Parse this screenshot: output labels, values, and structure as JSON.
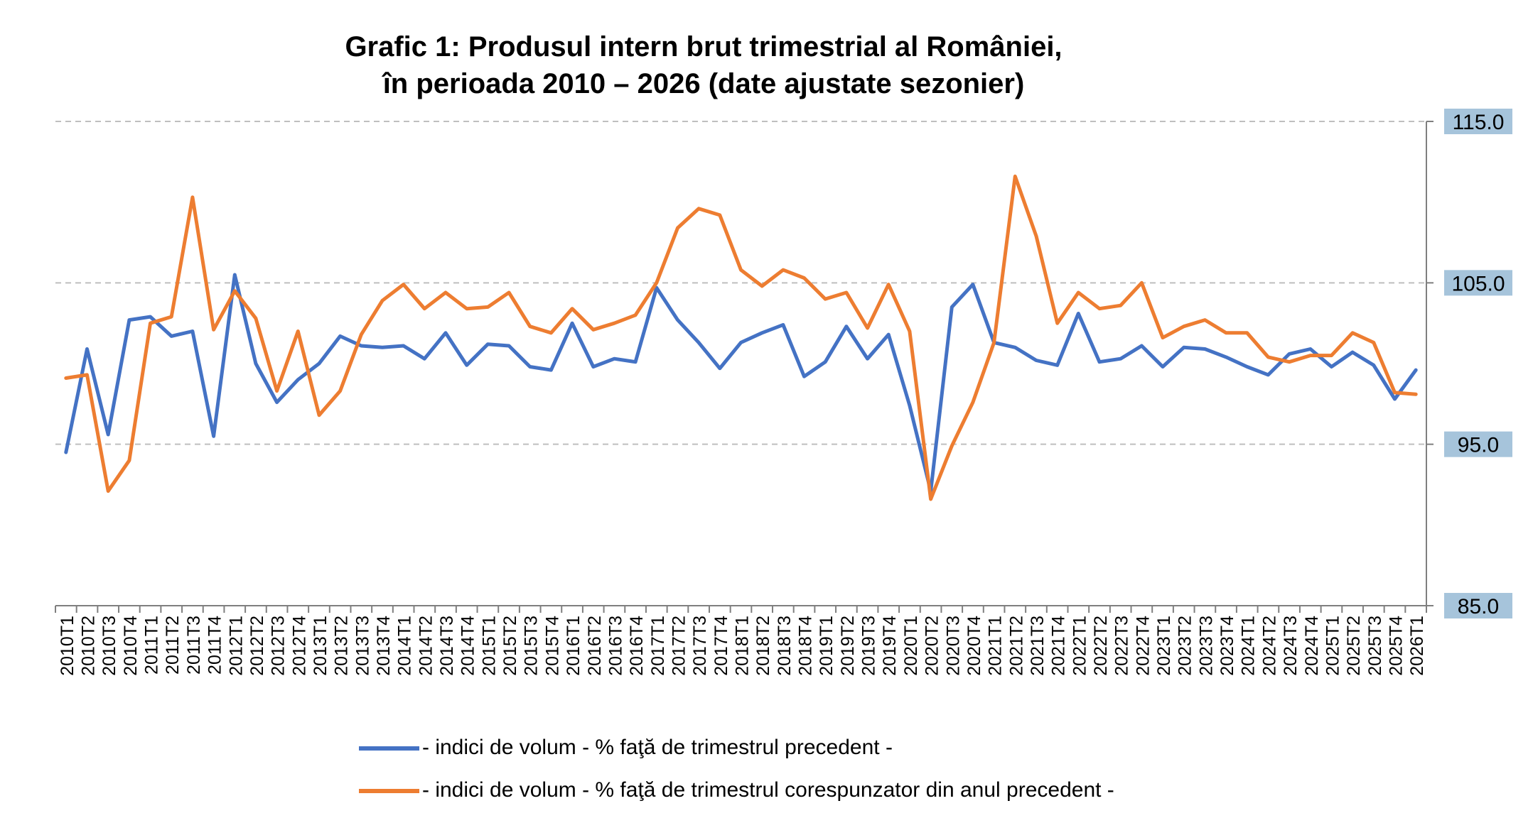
{
  "chart_data": {
    "type": "line",
    "title_line1": "Grafic 1: Produsul intern brut trimestrial al României,",
    "title_line2": "în perioada 2010 – 2026 (date ajustate sezonier)",
    "ylim": [
      85,
      115
    ],
    "y_ticks": [
      "115.0",
      "105.0",
      "95.0",
      "85.0"
    ],
    "y_tick_values": [
      115,
      105,
      95,
      85
    ],
    "y_axis_position": "right",
    "grid": "horizontal dashed",
    "legend_position": "bottom",
    "x": [
      "2010T1",
      "2010T2",
      "2010T3",
      "2010T4",
      "2011T1",
      "2011T2",
      "2011T3",
      "2011T4",
      "2012T1",
      "2012T2",
      "2012T3",
      "2012T4",
      "2013T1",
      "2013T2",
      "2013T3",
      "2013T4",
      "2014T1",
      "2014T2",
      "2014T3",
      "2014T4",
      "2015T1",
      "2015T2",
      "2015T3",
      "2015T4",
      "2016T1",
      "2016T2",
      "2016T3",
      "2016T4",
      "2017T1",
      "2017T2",
      "2017T3",
      "2017T4",
      "2018T1",
      "2018T2",
      "2018T3",
      "2018T4",
      "2019T1",
      "2019T2",
      "2019T3",
      "2019T4",
      "2020T1",
      "2020T2",
      "2020T3",
      "2020T4",
      "2021T1",
      "2021T2",
      "2021T3",
      "2021T4",
      "2022T1",
      "2022T2",
      "2022T3",
      "2022T4",
      "2023T1",
      "2023T2",
      "2023T3",
      "2023T4",
      "2024T1",
      "2024T2",
      "2024T3",
      "2024T4",
      "2025T1",
      "2025T2",
      "2025T3",
      "2025T4",
      "2026T1"
    ],
    "series": [
      {
        "name": "- indici de volum - % faţă de trimestrul precedent -",
        "color": "#4472C4",
        "values": [
          94.5,
          100.9,
          95.6,
          102.7,
          102.9,
          101.7,
          102.0,
          95.5,
          105.5,
          100.0,
          97.6,
          99.0,
          100.0,
          101.7,
          101.1,
          101.0,
          101.1,
          100.3,
          101.9,
          99.9,
          101.2,
          101.1,
          99.8,
          99.6,
          102.5,
          99.8,
          100.3,
          100.1,
          104.7,
          102.7,
          101.3,
          99.7,
          101.3,
          101.9,
          102.4,
          99.2,
          100.1,
          102.3,
          100.3,
          101.8,
          97.4,
          92.1,
          103.5,
          104.9,
          101.3,
          101.0,
          100.2,
          99.9,
          103.1,
          100.1,
          100.3,
          101.1,
          99.8,
          101.0,
          100.9,
          100.4,
          99.8,
          99.3,
          100.6,
          100.9,
          99.8,
          100.7,
          99.9,
          97.8,
          99.6
        ]
      },
      {
        "name": "- indici de volum - % faţă de trimestrul corespunzator din anul precedent -",
        "color": "#ED7D31",
        "values": [
          99.1,
          99.3,
          92.1,
          94.0,
          102.5,
          102.9,
          110.3,
          102.1,
          104.5,
          102.8,
          98.3,
          102.0,
          96.8,
          98.3,
          101.8,
          103.9,
          104.9,
          103.4,
          104.4,
          103.4,
          103.5,
          104.4,
          102.3,
          101.9,
          103.4,
          102.1,
          102.5,
          103.0,
          105.0,
          108.4,
          109.6,
          109.2,
          105.8,
          104.8,
          105.8,
          105.3,
          104.0,
          104.4,
          102.2,
          104.9,
          102.0,
          91.6,
          94.9,
          97.6,
          101.3,
          111.6,
          107.9,
          102.5,
          104.4,
          103.4,
          103.6,
          105.0,
          101.6,
          102.3,
          102.7,
          101.9,
          101.9,
          100.4,
          100.1,
          100.5,
          100.5,
          101.9,
          101.3,
          98.2,
          98.1
        ]
      }
    ]
  }
}
